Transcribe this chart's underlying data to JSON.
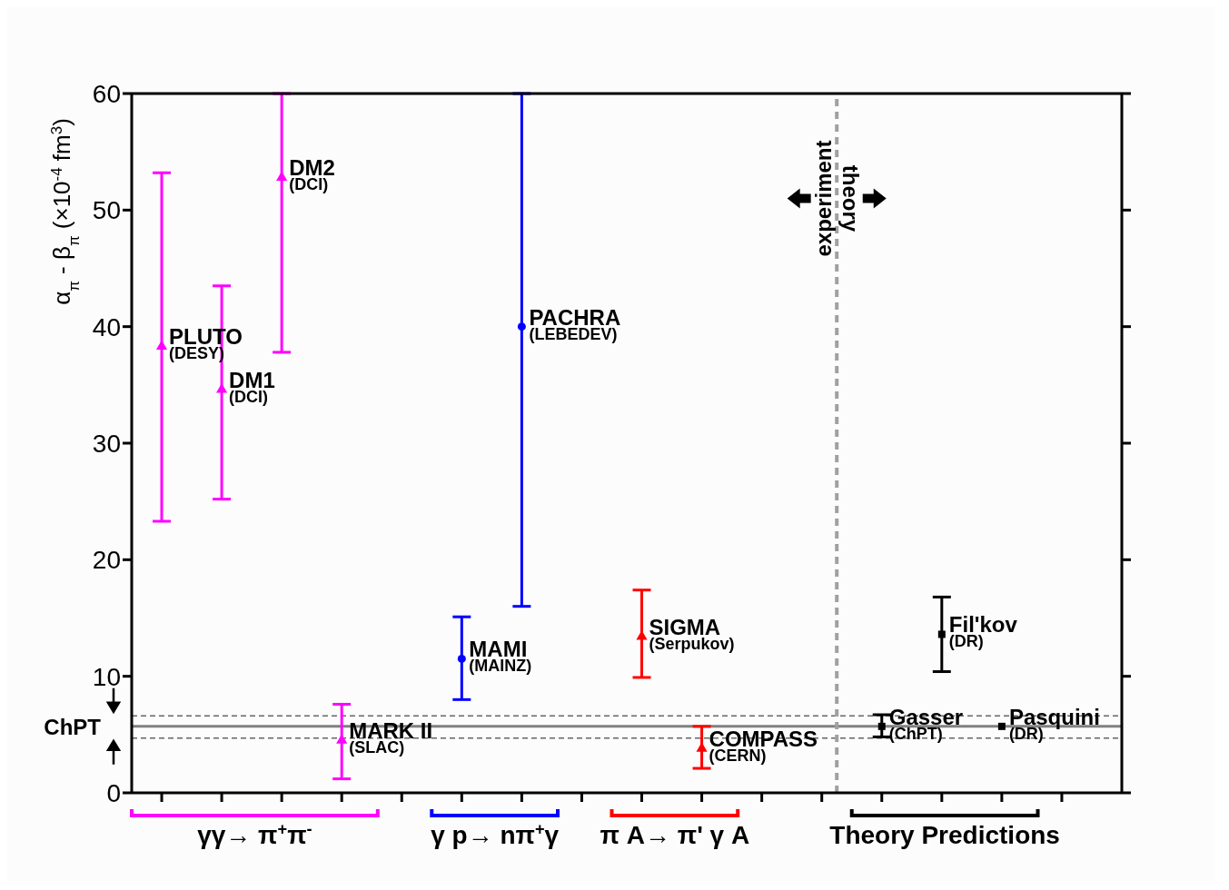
{
  "chart_data": {
    "type": "scatter",
    "ylabel": "α$_{π}$ - β$_{π}$ (×10$^{-4}$ fm$^{3}$)",
    "categories": [
      null,
      null,
      null,
      null,
      null,
      null,
      null,
      null,
      null,
      null,
      null,
      null,
      null,
      null,
      null,
      null
    ],
    "ylim": [
      0,
      60
    ],
    "yticks": [
      0,
      10,
      20,
      30,
      40,
      50,
      60
    ],
    "tick_labels": "y",
    "grid": false,
    "legend": false,
    "series": [
      {
        "color": "#ff00ff",
        "marker": "triangle",
        "values": [
          38.3,
          34.6,
          52.8,
          4.5,
          null,
          null,
          null,
          null,
          null,
          null,
          null,
          null,
          null,
          null,
          null,
          null
        ],
        "errors": [
          [
            23.3,
            53.2
          ],
          [
            25.2,
            43.5
          ],
          [
            37.8,
            60
          ],
          [
            1.2,
            7.6
          ],
          null,
          null,
          null,
          null,
          null,
          null,
          null,
          null,
          null,
          null,
          null,
          null
        ]
      },
      {
        "color": "#0000ff",
        "marker": "circle",
        "values": [
          null,
          null,
          null,
          null,
          null,
          11.5,
          40.0,
          null,
          null,
          null,
          null,
          null,
          null,
          null,
          null,
          null
        ],
        "errors": [
          null,
          null,
          null,
          null,
          null,
          [
            8.0,
            15.1
          ],
          [
            16.0,
            60
          ],
          null,
          null,
          null,
          null,
          null,
          null,
          null,
          null,
          null
        ]
      },
      {
        "color": "#ff0000",
        "marker": "triangle",
        "values": [
          null,
          null,
          null,
          null,
          null,
          null,
          null,
          null,
          13.4,
          3.8,
          null,
          null,
          null,
          null,
          null,
          null
        ],
        "errors": [
          null,
          null,
          null,
          null,
          null,
          null,
          null,
          null,
          [
            9.9,
            17.4
          ],
          [
            2.1,
            5.7
          ],
          null,
          null,
          null,
          null,
          null,
          null
        ]
      },
      {
        "color": "#000000",
        "marker": "square",
        "values": [
          null,
          null,
          null,
          null,
          null,
          null,
          null,
          null,
          null,
          null,
          null,
          null,
          5.7,
          13.6,
          5.7,
          null
        ],
        "errors": [
          null,
          null,
          null,
          null,
          null,
          null,
          null,
          null,
          null,
          null,
          null,
          null,
          [
            4.8,
            6.7
          ],
          [
            10.4,
            16.8
          ],
          null,
          null
        ]
      }
    ],
    "ref_lines": [
      {
        "axis": "y",
        "value": 5.7,
        "label": "ChPT",
        "color": "#808080",
        "line_style": "solid"
      },
      {
        "axis": "y",
        "value": 6.6,
        "label": null,
        "color": "#666666",
        "line_style": "dashed"
      },
      {
        "axis": "y",
        "value": 4.7,
        "label": null,
        "color": "#666666",
        "line_style": "dashed"
      }
    ],
    "annotations": [
      "PLUTO",
      "(DESY)",
      "DM1",
      "(DCI)",
      "DM2",
      "(DCI)",
      "MARK II",
      "(SLAC)",
      "MAMI",
      "(MAINZ)",
      "PACHRA",
      "(LEBEDEV)",
      "SIGMA",
      "(Serpukov)",
      "COMPASS",
      "(CERN)",
      "Gasser",
      "(ChPT)",
      "Fil'kov",
      "(DR)",
      "Pasquini",
      "(DR)",
      "experiment",
      "theory",
      "γγ→ π$^{+}$π$^{-}$",
      "γ p→ nπ$^{+}$γ",
      "π A→ π' γ A",
      "Theory Predictions"
    ]
  }
}
